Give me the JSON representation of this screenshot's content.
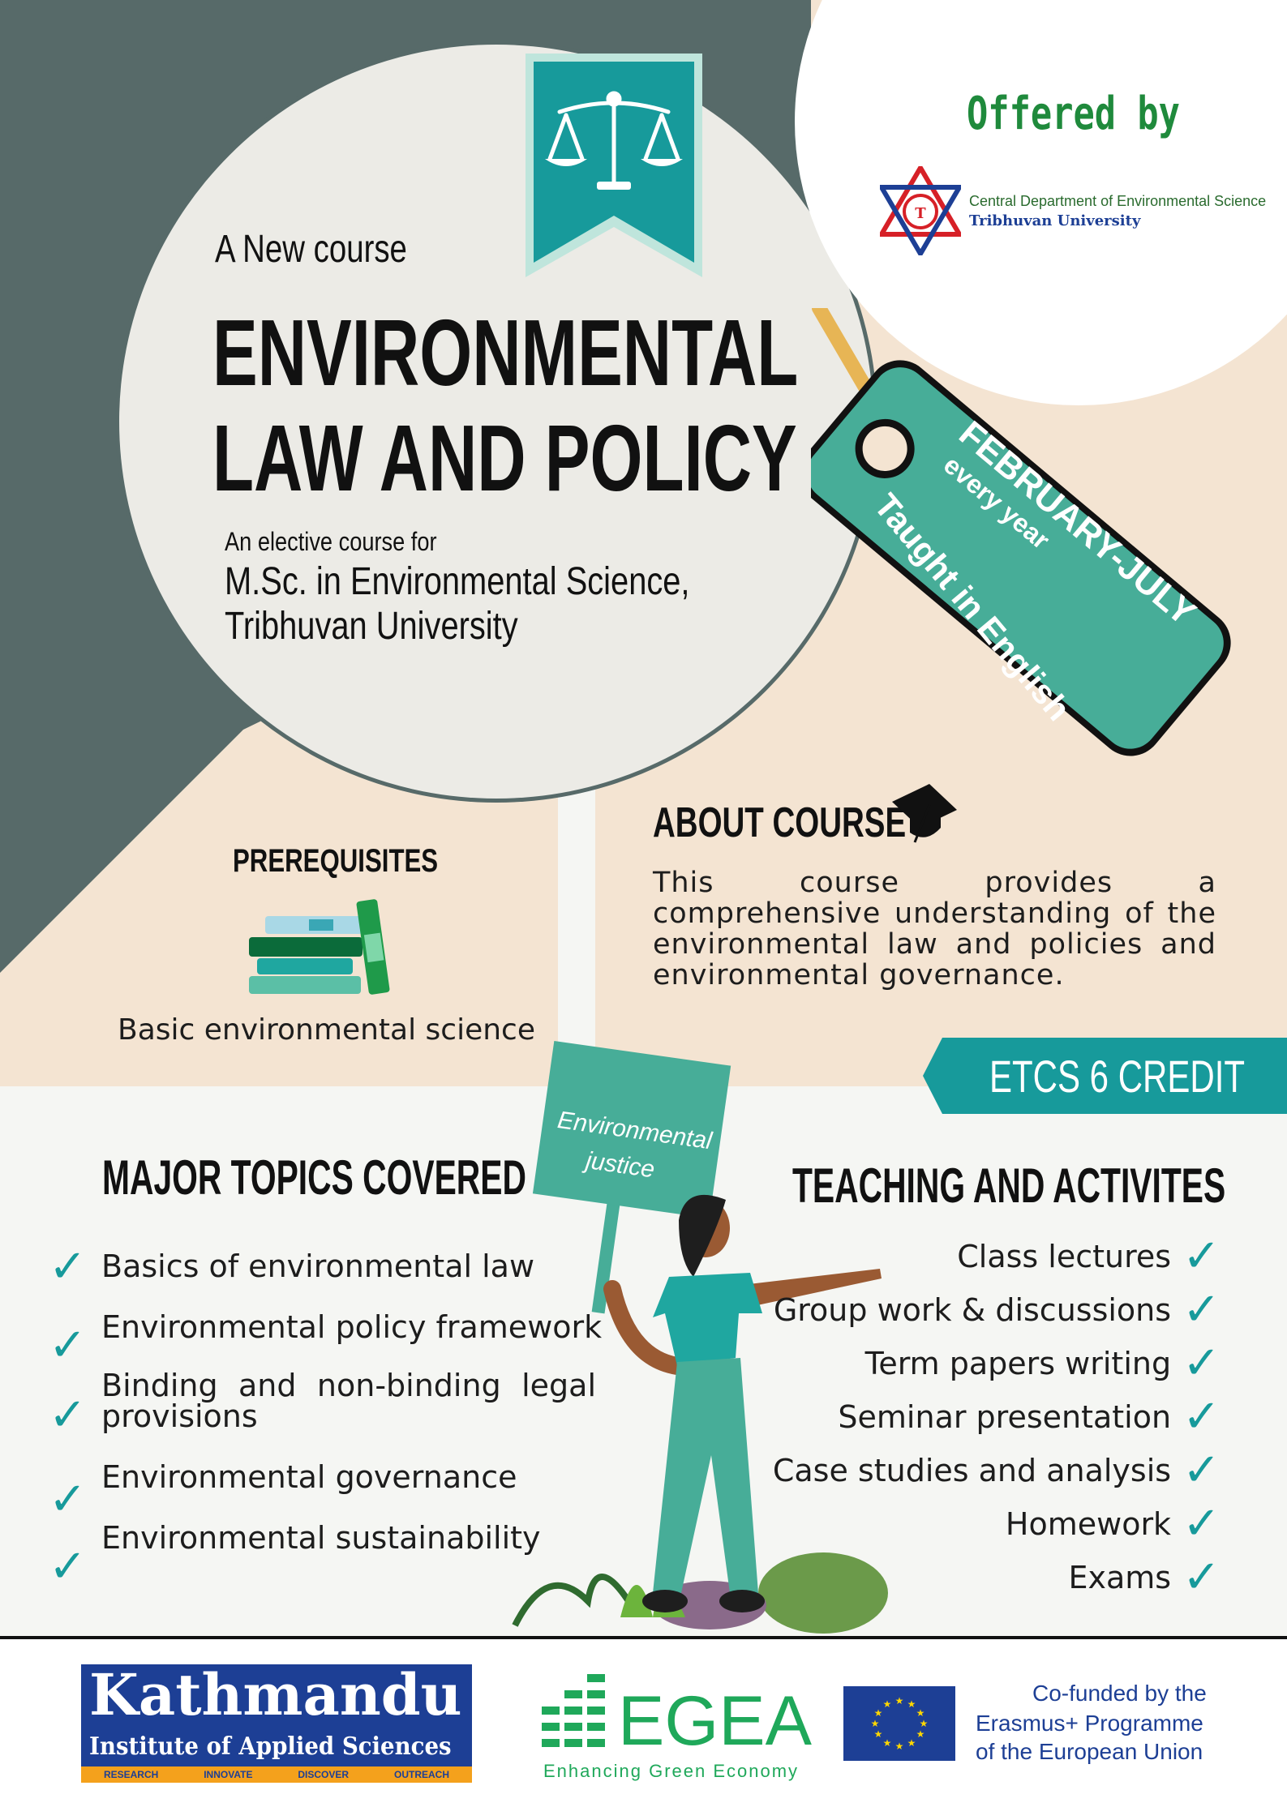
{
  "header": {
    "offered_by": "Offered by",
    "dept_line1": "Central Department of Environmental Science",
    "dept_line2": "Tribhuvan University"
  },
  "hero": {
    "kicker": "A New course",
    "title_line1": "ENVIRONMENTAL",
    "title_line2": "LAW AND POLICY",
    "sub_small": "An elective course for",
    "sub_line1": "M.Sc. in Environmental Science,",
    "sub_line2": "Tribhuvan University"
  },
  "tag": {
    "months": "FEBRUARY-JULY",
    "every": "every year",
    "language": "Taught in English"
  },
  "prerequisites": {
    "heading": "PREREQUISITES",
    "text": "Basic environmental science"
  },
  "about": {
    "heading": "ABOUT COURSE",
    "text": "This course provides a comprehensive understanding of the environmental law and policies and environmental governance."
  },
  "credit": {
    "label": "ETCS 6 CREDIT"
  },
  "sign": {
    "line1": "Environmental",
    "line2": "justice"
  },
  "topics": {
    "heading": "MAJOR TOPICS COVERED",
    "items": [
      "Basics of environmental law",
      "Environmental policy framework",
      "Binding and non-binding legal provisions",
      "Environmental governance",
      "Environmental sustainability"
    ]
  },
  "activities": {
    "heading": "TEACHING AND ACTIVITES",
    "items": [
      "Class lectures",
      "Group work & discussions",
      "Term papers writing",
      "Seminar presentation",
      "Case studies and analysis",
      "Homework",
      "Exams"
    ]
  },
  "footer": {
    "kias_name": "Kathmandu",
    "kias_sub": "Institute of Applied Sciences",
    "kias_tags": [
      "RESEARCH",
      "INNOVATE",
      "DISCOVER",
      "OUTREACH"
    ],
    "egea_name": "EGEA",
    "egea_sub": "Enhancing Green Economy",
    "eu_line1": "Co-funded by the",
    "eu_line2": "Erasmus+ Programme",
    "eu_line3": "of the European Union"
  },
  "colors": {
    "dark_slate": "#576a69",
    "teal": "#47ad98",
    "teal_dark": "#179a9b",
    "peach": "#f4e4d2",
    "cream": "#ecebe6",
    "green_text": "#1f8a3c"
  }
}
